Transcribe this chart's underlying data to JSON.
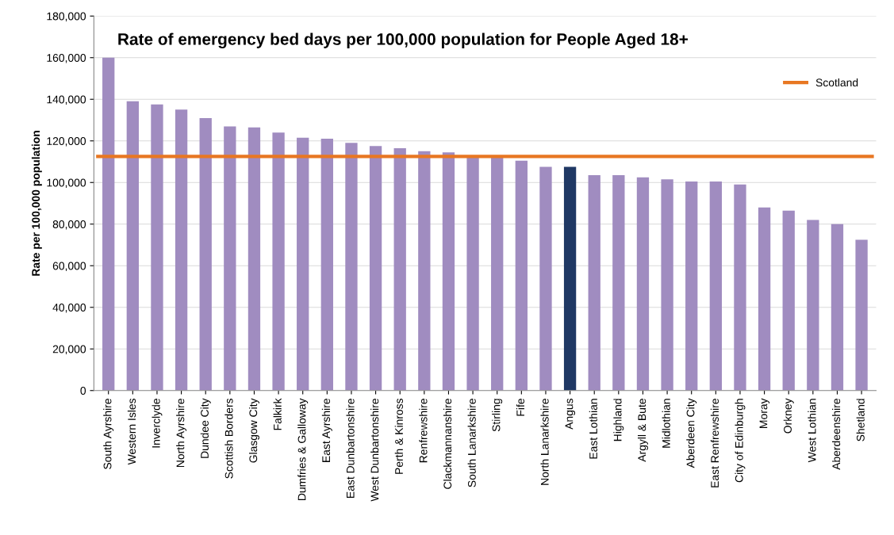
{
  "chart_data": {
    "type": "bar",
    "title": "Rate of emergency bed days per 100,000 population for People Aged 18+",
    "ylabel": "Rate per 100,000 population",
    "categories": [
      "South Ayrshire",
      "Western Isles",
      "Inverclyde",
      "North Ayrshire",
      "Dundee City",
      "Scottish Borders",
      "Glasgow City",
      "Falkirk",
      "Dumfries & Galloway",
      "East Ayrshire",
      "East Dunbartonshire",
      "West Dunbartonshire",
      "Perth & Kinross",
      "Renfrewshire",
      "Clackmannanshire",
      "South Lanarkshire",
      "Stirling",
      "Fife",
      "North Lanarkshire",
      "Angus",
      "East Lothian",
      "Highland",
      "Argyll & Bute",
      "Midlothian",
      "Aberdeen City",
      "East Renfrewshire",
      "City of Edinburgh",
      "Moray",
      "Orkney",
      "West Lothian",
      "Aberdeenshire",
      "Shetland"
    ],
    "values": [
      160000,
      139000,
      137500,
      135000,
      131000,
      127000,
      126500,
      124000,
      121500,
      121000,
      119000,
      117500,
      116500,
      115000,
      114500,
      112000,
      112500,
      110500,
      107500,
      107500,
      103500,
      103500,
      102500,
      101500,
      100500,
      100500,
      99000,
      88000,
      86500,
      82000,
      80000,
      72500
    ],
    "colors": [
      "#a08cc0",
      "#a08cc0",
      "#a08cc0",
      "#a08cc0",
      "#a08cc0",
      "#a08cc0",
      "#a08cc0",
      "#a08cc0",
      "#a08cc0",
      "#a08cc0",
      "#a08cc0",
      "#a08cc0",
      "#a08cc0",
      "#a08cc0",
      "#a08cc0",
      "#a08cc0",
      "#a08cc0",
      "#a08cc0",
      "#a08cc0",
      "#1f3864",
      "#a08cc0",
      "#a08cc0",
      "#a08cc0",
      "#a08cc0",
      "#a08cc0",
      "#a08cc0",
      "#a08cc0",
      "#a08cc0",
      "#a08cc0",
      "#a08cc0",
      "#a08cc0",
      "#a08cc0"
    ],
    "ylim": [
      0,
      180000
    ],
    "yticks": [
      {
        "value": 0,
        "label": "0"
      },
      {
        "value": 20000,
        "label": "20,000"
      },
      {
        "value": 40000,
        "label": "40,000"
      },
      {
        "value": 60000,
        "label": "60,000"
      },
      {
        "value": 80000,
        "label": "80,000"
      },
      {
        "value": 100000,
        "label": "100,000"
      },
      {
        "value": 120000,
        "label": "120,000"
      },
      {
        "value": 140000,
        "label": "140,000"
      },
      {
        "value": 160000,
        "label": "160,000"
      },
      {
        "value": 180000,
        "label": "180,000"
      }
    ],
    "ref_lines": [
      {
        "axis": "y",
        "value": 112500,
        "label": "Scotland",
        "color": "#e87722"
      }
    ],
    "grid": "y",
    "legend": "top right"
  }
}
